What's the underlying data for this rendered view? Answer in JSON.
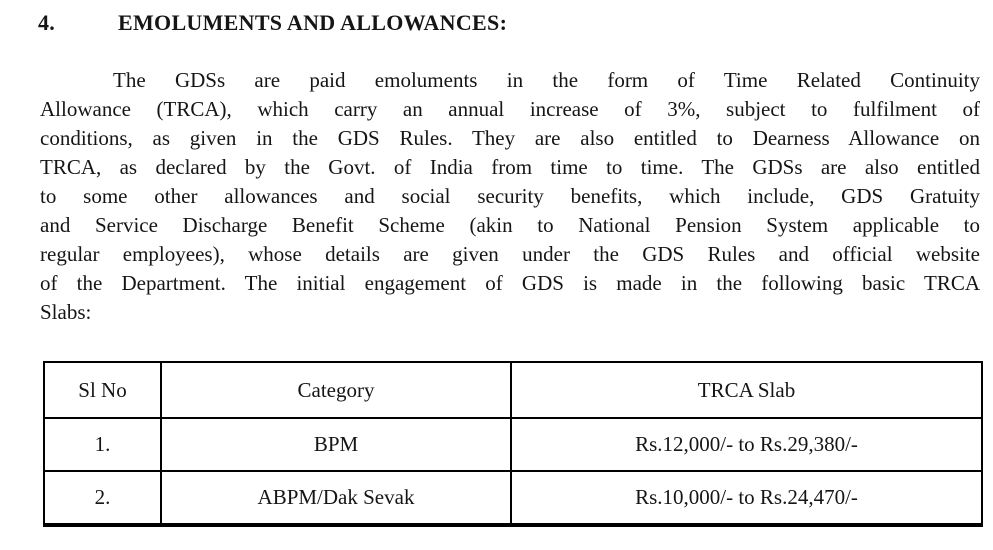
{
  "document": {
    "heading": {
      "number": "4.",
      "title": "EMOLUMENTS AND ALLOWANCES:"
    },
    "paragraph": {
      "lines": [
        "The GDSs are paid emoluments in the form of Time Related Continuity",
        "Allowance (TRCA), which carry an annual increase of 3%, subject to fulfilment of",
        "conditions, as given in the GDS Rules. They are also entitled to Dearness Allowance on",
        "TRCA, as declared by the Govt. of India from time to time. The GDSs are also entitled",
        "to some other allowances and social security benefits, which include, GDS Gratuity",
        "and Service Discharge Benefit Scheme (akin to National Pension System applicable to",
        "regular employees), whose details are given under the GDS Rules and official website",
        "of the Department. The initial engagement of GDS is made in the following basic TRCA",
        "Slabs:"
      ]
    },
    "table": {
      "headers": [
        "Sl No",
        "Category",
        "TRCA Slab"
      ],
      "rows": [
        [
          "1.",
          "BPM",
          "Rs.12,000/- to Rs.29,380/-"
        ],
        [
          "2.",
          "ABPM/Dak Sevak",
          "Rs.10,000/- to Rs.24,470/-"
        ]
      ]
    },
    "colors": {
      "text": "#151515",
      "border": "#000000",
      "background": "#ffffff"
    }
  }
}
